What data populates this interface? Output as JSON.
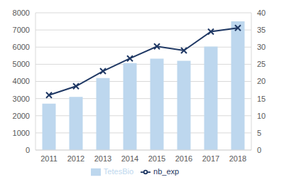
{
  "chart_data": {
    "type": "bar",
    "categories": [
      "2011",
      "2012",
      "2013",
      "2014",
      "2015",
      "2016",
      "2017",
      "2018"
    ],
    "series": [
      {
        "name": "TetesBio",
        "type": "bar",
        "color": "#bdd7ee",
        "values": [
          2700,
          3100,
          4200,
          5070,
          5330,
          5200,
          6030,
          7500
        ]
      },
      {
        "name": "nb_exp",
        "type": "line",
        "axis": "y2",
        "color": "#1f3864",
        "marker": "x",
        "line_style": "solid",
        "values": [
          16,
          18.6,
          23,
          26.7,
          30.2,
          29,
          34.5,
          35.6
        ]
      }
    ],
    "ylim": [
      0,
      8000
    ],
    "yticks": [
      0,
      1000,
      2000,
      3000,
      4000,
      5000,
      6000,
      7000,
      8000
    ],
    "y2lim": [
      0,
      40
    ],
    "y2ticks": [
      0,
      5,
      10,
      15,
      20,
      25,
      30,
      35,
      40
    ],
    "grid": true,
    "legend": "bottom"
  }
}
